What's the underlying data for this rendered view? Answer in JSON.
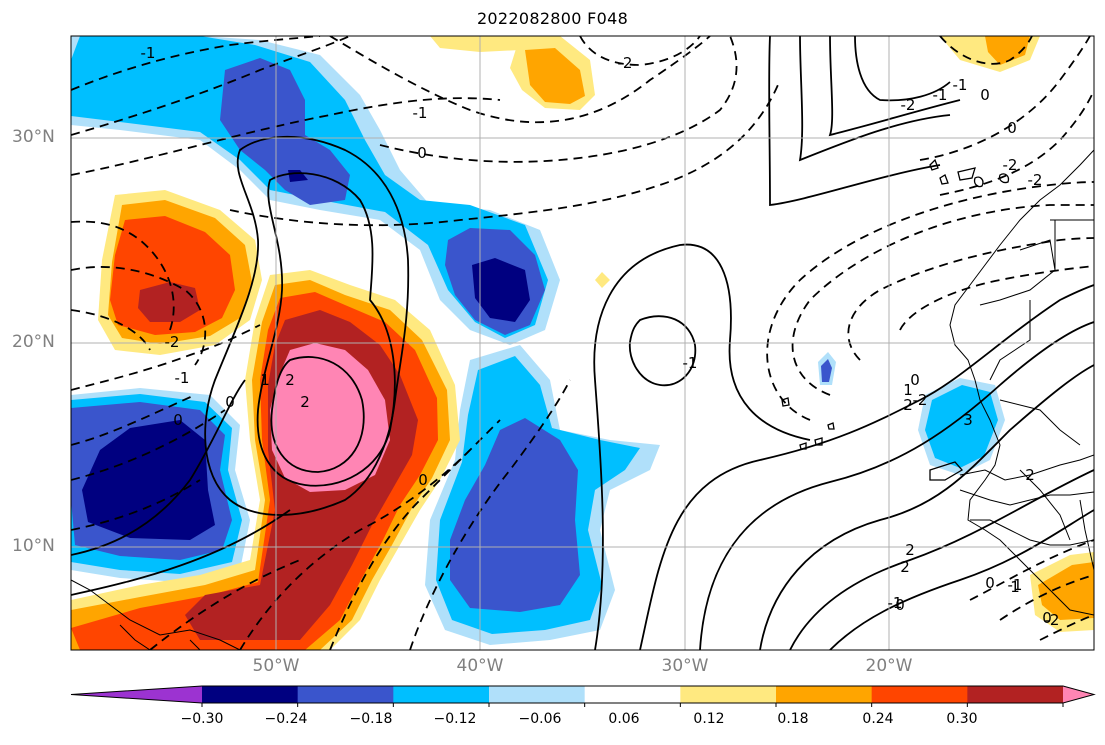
{
  "title": "2022082800 F048",
  "latitude_labels": [
    "30°N",
    "20°N",
    "10°N"
  ],
  "longitude_labels": [
    "50°W",
    "40°W",
    "30°W",
    "20°W"
  ],
  "colorbar": {
    "ticks": [
      "−0.30",
      "−0.24",
      "−0.18",
      "−0.12",
      "−0.06",
      "0.06",
      "0.12",
      "0.18",
      "0.24",
      "0.30"
    ],
    "colors": [
      "#9c33d1",
      "#000080",
      "#3a55cc",
      "#00bfff",
      "#b0e0fa",
      "#ffffff",
      "#ffe980",
      "#ffa500",
      "#ff4500",
      "#b22222",
      "#ff85b4"
    ]
  },
  "contour_labels": [
    "-1",
    "-2",
    "-1",
    "0",
    "-2",
    "2",
    "2",
    "-1",
    "0",
    "0",
    "-1",
    "-2",
    "-2",
    "-1",
    "1",
    "0",
    "-2",
    "-1",
    "0",
    "2",
    "-2",
    "0",
    "1",
    "0",
    "2",
    "-1",
    "0",
    "1",
    "3",
    "0",
    "2",
    "2",
    "0",
    "-1",
    "-2"
  ]
}
